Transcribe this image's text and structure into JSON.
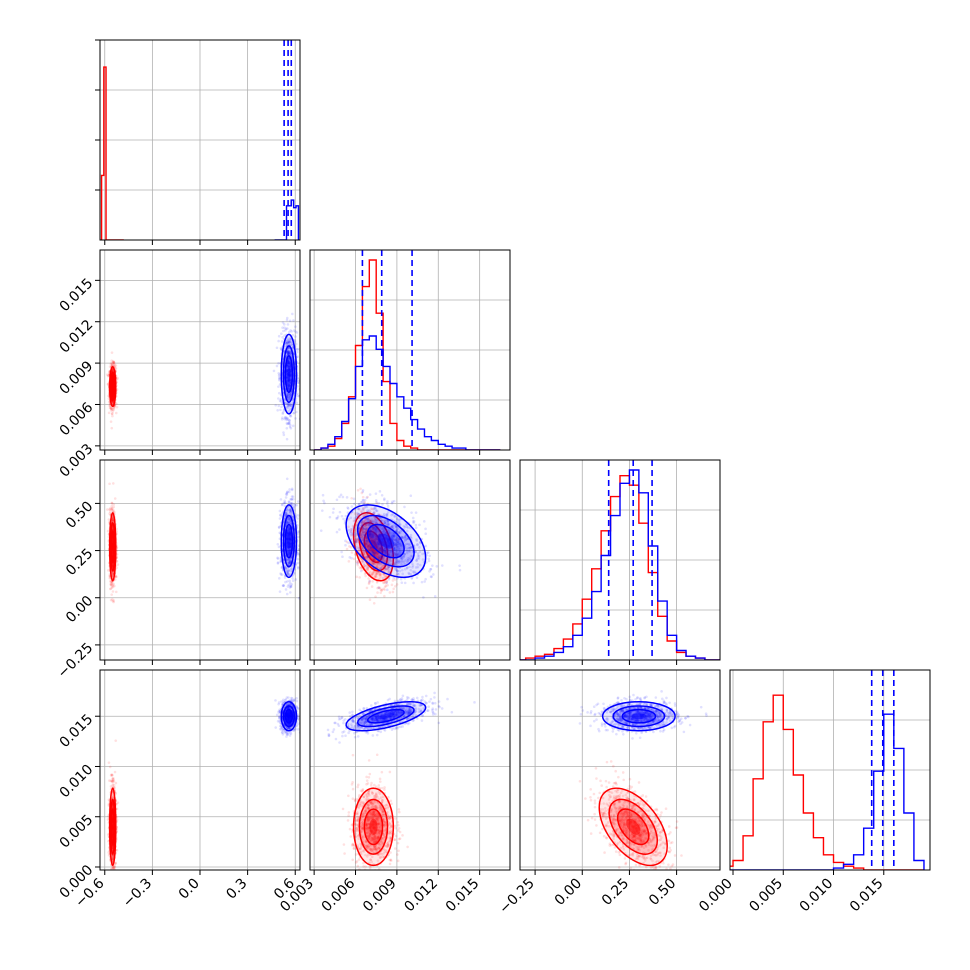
{
  "chart_data": {
    "type": "corner",
    "grid": true,
    "colors": {
      "red": "#ff0000",
      "blue": "#0000ff"
    },
    "series": [
      {
        "color": "#ff0000",
        "mean": [
          -0.55,
          0.0073,
          0.27,
          0.004
        ],
        "sd": [
          0.008,
          0.0006,
          0.075,
          0.0016
        ],
        "corr": [
          [
            1,
            0,
            0,
            0
          ],
          [
            0,
            1,
            -0.35,
            0
          ],
          [
            0,
            -0.35,
            1,
            -0.5
          ],
          [
            0,
            0,
            -0.5,
            1
          ]
        ]
      },
      {
        "color": "#0000ff",
        "mean": [
          0.56,
          0.0082,
          0.3,
          0.015
        ],
        "sd": [
          0.02,
          0.0012,
          0.08,
          0.0006
        ],
        "corr": [
          [
            1,
            0,
            0,
            0
          ],
          [
            0,
            1,
            -0.45,
            0.6
          ],
          [
            0,
            -0.45,
            1,
            0
          ],
          [
            0,
            0.6,
            0,
            1
          ]
        ]
      }
    ],
    "quantiles_blue": [
      [
        0.53,
        0.555,
        0.575
      ],
      [
        0.0065,
        0.0079,
        0.0101
      ],
      [
        0.14,
        0.27,
        0.37
      ],
      [
        0.0138,
        0.0149,
        0.016
      ]
    ],
    "hist_counts": {
      "0": {
        "red_range": [
          -0.62,
          -0.48
        ],
        "red_bins": [
          0.34,
          0.91,
          0,
          0,
          0,
          0,
          0,
          0,
          0,
          0
        ],
        "blue_range": [
          0.47,
          0.62
        ],
        "blue_bins": [
          0,
          0,
          0,
          0,
          0,
          0.18,
          0.18,
          0.21,
          0.17,
          0.18
        ]
      },
      "1": {
        "bins": [
          0.003,
          0.0035,
          0.004,
          0.0045,
          0.005,
          0.0055,
          0.006,
          0.0065,
          0.007,
          0.0075,
          0.008,
          0.0085,
          0.009,
          0.0095,
          0.01,
          0.0105,
          0.011,
          0.0115,
          0.012,
          0.0125,
          0.013,
          0.0135,
          0.014,
          0.0145,
          0.015,
          0.0155,
          0.016,
          0.0165
        ],
        "red": [
          0,
          0.01,
          0.02,
          0.06,
          0.14,
          0.28,
          0.55,
          0.86,
          1.0,
          0.72,
          0.36,
          0.14,
          0.05,
          0.02,
          0.01,
          0,
          0,
          0,
          0,
          0,
          0,
          0,
          0,
          0,
          0,
          0,
          0
        ],
        "blue": [
          0,
          0.01,
          0.03,
          0.07,
          0.15,
          0.27,
          0.44,
          0.58,
          0.6,
          0.53,
          0.44,
          0.35,
          0.28,
          0.22,
          0.16,
          0.11,
          0.07,
          0.05,
          0.03,
          0.02,
          0.01,
          0.01,
          0,
          0,
          0,
          0,
          0
        ]
      },
      "2": {
        "bins": [
          -0.35,
          -0.3,
          -0.25,
          -0.2,
          -0.15,
          -0.1,
          -0.05,
          0.0,
          0.05,
          0.1,
          0.15,
          0.2,
          0.25,
          0.3,
          0.35,
          0.4,
          0.45,
          0.5,
          0.55,
          0.6,
          0.65,
          0.7,
          0.75
        ],
        "red": [
          0,
          0.01,
          0.02,
          0.03,
          0.06,
          0.11,
          0.19,
          0.32,
          0.48,
          0.68,
          0.86,
          0.97,
          0.92,
          0.72,
          0.46,
          0.23,
          0.1,
          0.04,
          0.02,
          0.01,
          0,
          0
        ],
        "blue": [
          0,
          0,
          0.01,
          0.02,
          0.04,
          0.07,
          0.13,
          0.22,
          0.36,
          0.55,
          0.76,
          0.93,
          1.0,
          0.88,
          0.6,
          0.31,
          0.13,
          0.05,
          0.02,
          0.01,
          0,
          0
        ]
      },
      "3": {
        "bins": [
          -0.001,
          0.0,
          0.001,
          0.002,
          0.003,
          0.004,
          0.005,
          0.006,
          0.007,
          0.008,
          0.009,
          0.01,
          0.011,
          0.012,
          0.013,
          0.014,
          0.015,
          0.016,
          0.017,
          0.018,
          0.019
        ],
        "red": [
          0.02,
          0.05,
          0.18,
          0.48,
          0.78,
          0.92,
          0.74,
          0.5,
          0.3,
          0.17,
          0.08,
          0.04,
          0.02,
          0.01,
          0,
          0,
          0,
          0,
          0,
          0
        ],
        "blue": [
          0,
          0,
          0,
          0,
          0,
          0,
          0,
          0,
          0,
          0,
          0,
          0.01,
          0.03,
          0.08,
          0.22,
          0.52,
          0.82,
          0.64,
          0.3,
          0.05
        ]
      }
    },
    "axes": [
      {
        "range": [
          -0.63,
          0.63
        ],
        "ticks": [
          -0.6,
          -0.3,
          0.0,
          0.3,
          0.6
        ],
        "tick_labels": [
          "−0.6",
          "−0.3",
          "0.0",
          "0.3",
          "0.6"
        ]
      },
      {
        "range": [
          0.0027,
          0.0172
        ],
        "ticks": [
          0.003,
          0.006,
          0.009,
          0.012,
          0.015
        ],
        "tick_labels": [
          "0.003",
          "0.006",
          "0.009",
          "0.012",
          "0.015"
        ]
      },
      {
        "range": [
          -0.33,
          0.73
        ],
        "ticks": [
          -0.25,
          0.0,
          0.25,
          0.5
        ],
        "tick_labels": [
          "−0.25",
          "0.00",
          "0.25",
          "0.50"
        ]
      },
      {
        "range": [
          -0.0003,
          0.0196
        ],
        "ticks": [
          0.0,
          0.005,
          0.01,
          0.015
        ],
        "tick_labels": [
          "0.000",
          "0.005",
          "0.010",
          "0.015"
        ]
      }
    ],
    "y_tick_labels_row1": [
      "0.003",
      "0.006",
      "0.009",
      "0.012",
      "0.015"
    ],
    "y_tick_labels_row2": [
      "−0.25",
      "0.00",
      "0.25",
      "0.50"
    ],
    "y_tick_labels_row3": [
      "0.000",
      "0.005",
      "0.010",
      "0.015"
    ]
  }
}
